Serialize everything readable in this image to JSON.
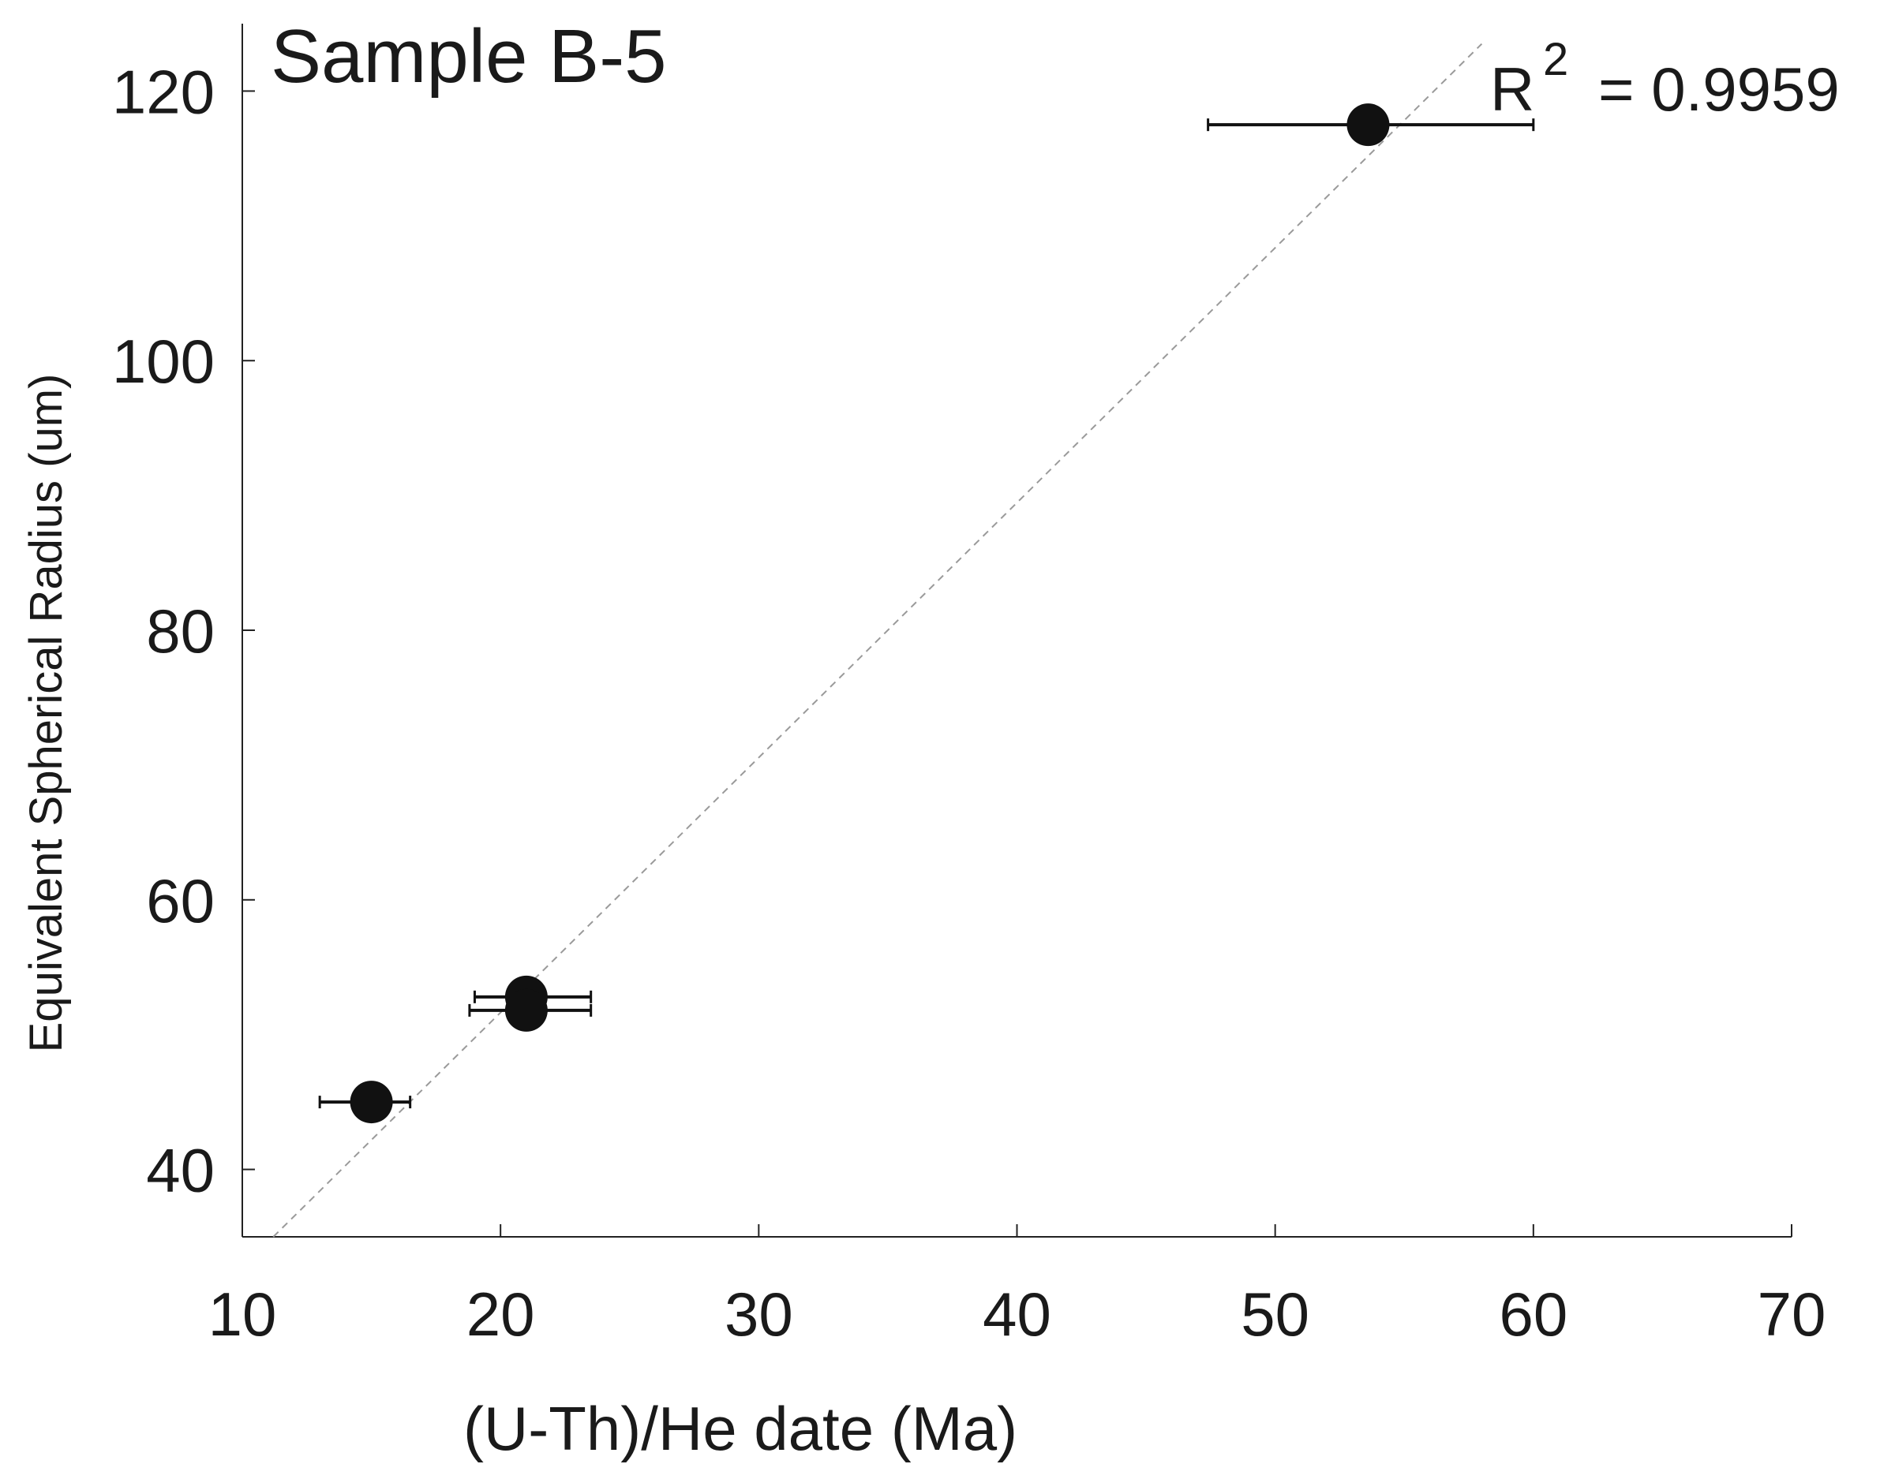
{
  "chart_data": {
    "type": "scatter",
    "title": "Sample B-5",
    "xlabel": "(U-Th)/He date (Ma)",
    "ylabel": "Equivalent Spherical Radius (um)",
    "annotation": {
      "base": "R",
      "sup": "2",
      "value": "= 0.9959"
    },
    "xlim": [
      10,
      70
    ],
    "ylim": [
      35,
      125
    ],
    "xticks": [
      10,
      20,
      30,
      40,
      50,
      60,
      70
    ],
    "yticks": [
      40,
      60,
      80,
      100,
      120
    ],
    "grid": false,
    "points": [
      {
        "x": 15.0,
        "y": 45.0,
        "xerr": [
          13.0,
          16.5
        ]
      },
      {
        "x": 21.0,
        "y": 52.8,
        "xerr": [
          19.0,
          23.5
        ]
      },
      {
        "x": 21.0,
        "y": 51.8,
        "xerr": [
          18.8,
          23.5
        ]
      },
      {
        "x": 53.6,
        "y": 117.5,
        "xerr": [
          47.4,
          60.0
        ]
      }
    ],
    "fit_line": {
      "x": [
        11.2,
        58.0
      ],
      "y": [
        35.0,
        123.5
      ],
      "style": "dashed"
    },
    "colors": {
      "points": "#111111",
      "axes": "#222222",
      "fit": "#9a9a9a"
    }
  }
}
